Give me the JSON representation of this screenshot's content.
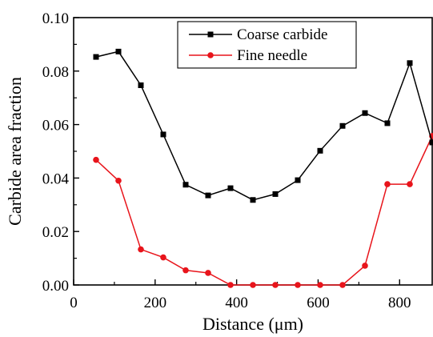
{
  "chart_data": {
    "type": "line",
    "xlabel": "Distance (μm)",
    "ylabel": "Carbide area fraction",
    "xlim": [
      0,
      880
    ],
    "ylim": [
      0,
      0.1
    ],
    "xticks": [
      0,
      200,
      400,
      600,
      800
    ],
    "yticks": [
      0.0,
      0.02,
      0.04,
      0.06,
      0.08,
      0.1
    ],
    "xtick_labels": [
      "0",
      "200",
      "400",
      "600",
      "800"
    ],
    "ytick_labels": [
      "0.00",
      "0.02",
      "0.04",
      "0.06",
      "0.08",
      "0.10"
    ],
    "grid": false,
    "legend_position": "top-center",
    "series": [
      {
        "name": "Coarse carbide",
        "color": "#000000",
        "marker": "square",
        "x": [
          55,
          110,
          165,
          220,
          275,
          330,
          385,
          440,
          495,
          550,
          605,
          660,
          715,
          770,
          825,
          880
        ],
        "y": [
          0.0853,
          0.0873,
          0.0747,
          0.0563,
          0.0375,
          0.0335,
          0.0362,
          0.0318,
          0.034,
          0.0392,
          0.0502,
          0.0595,
          0.0643,
          0.0605,
          0.083,
          0.0533
        ]
      },
      {
        "name": "Fine needle",
        "color": "#e8141b",
        "marker": "circle",
        "x": [
          55,
          110,
          165,
          220,
          275,
          330,
          385,
          440,
          495,
          550,
          605,
          660,
          715,
          770,
          825,
          880
        ],
        "y": [
          0.0468,
          0.039,
          0.0133,
          0.0103,
          0.0055,
          0.0045,
          0.0,
          0.0,
          0.0,
          0.0,
          0.0,
          0.0,
          0.0072,
          0.0377,
          0.0377,
          0.0557
        ]
      }
    ]
  }
}
